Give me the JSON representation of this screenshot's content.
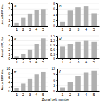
{
  "chart_data": [
    {
      "type": "bar",
      "title": "a",
      "ylabel": "Annual NPP, t/ha",
      "categories": [
        1,
        2,
        3,
        4,
        5
      ],
      "values": [
        0.5,
        1.5,
        2.2,
        2.8,
        3.0
      ],
      "color": "#b0b0b0",
      "ylim": [
        0,
        4
      ],
      "yticks": [
        0,
        1,
        2,
        3,
        4
      ],
      "grid": true
    },
    {
      "type": "bar",
      "title": "b",
      "categories": [
        1,
        2,
        3,
        4,
        5
      ],
      "values": [
        1.5,
        5.5,
        6.5,
        7.0,
        4.5
      ],
      "color": "#b0b0b0",
      "ylim": [
        0,
        8
      ],
      "yticks": [
        0,
        2,
        4,
        6,
        8
      ],
      "grid": true
    },
    {
      "type": "bar",
      "title": "c",
      "ylabel": "Annual NPP, t/ha",
      "categories": [
        1,
        2,
        3,
        4,
        5
      ],
      "values": [
        0.4,
        1.0,
        2.0,
        3.2,
        4.5
      ],
      "color": "#b0b0b0",
      "ylim": [
        0,
        5
      ],
      "yticks": [
        0,
        1,
        2,
        3,
        4,
        5
      ],
      "grid": true
    },
    {
      "type": "bar",
      "title": "d",
      "categories": [
        1,
        2,
        3,
        4,
        5
      ],
      "values": [
        0.8,
        1.0,
        1.1,
        1.2,
        1.1
      ],
      "color": "#b0b0b0",
      "ylim": [
        0,
        1.5
      ],
      "yticks": [
        0,
        0.3,
        0.6,
        0.9,
        1.2,
        1.5
      ],
      "grid": true
    },
    {
      "type": "bar",
      "title": "e",
      "ylabel": "Annual NPP, t/ha",
      "xlabel": "Zonal belt number",
      "categories": [
        1,
        2,
        3,
        4,
        5
      ],
      "values": [
        1.5,
        3.5,
        5.5,
        7.5,
        8.5
      ],
      "color": "#b0b0b0",
      "ylim": [
        0,
        10
      ],
      "yticks": [
        0,
        2,
        4,
        6,
        8,
        10
      ],
      "grid": true
    },
    {
      "type": "bar",
      "title": "f",
      "categories": [
        1,
        2,
        3,
        4,
        5
      ],
      "values": [
        2.0,
        5.0,
        8.0,
        10.0,
        11.0
      ],
      "color": "#b0b0b0",
      "ylim": [
        0,
        12
      ],
      "yticks": [
        0,
        3,
        6,
        9,
        12
      ],
      "grid": true
    }
  ]
}
